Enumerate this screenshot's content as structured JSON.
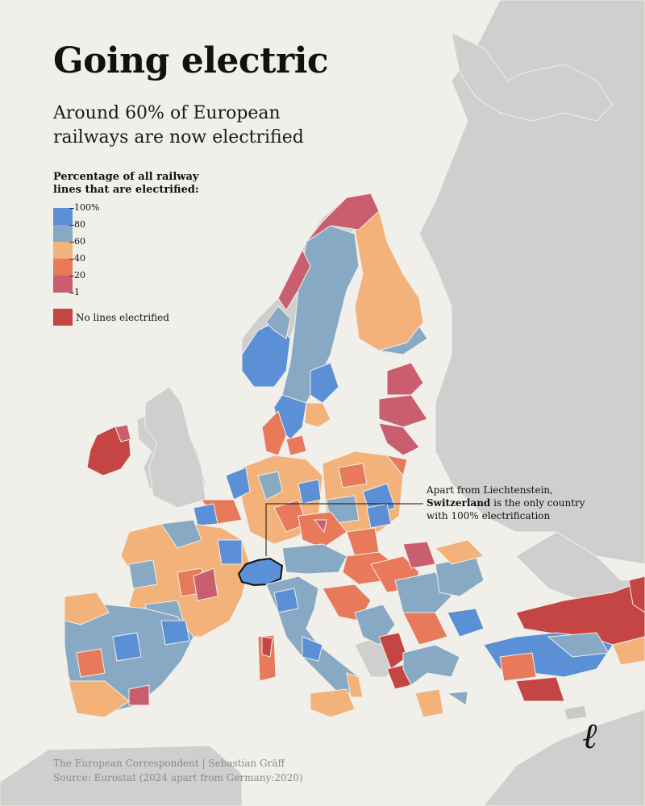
{
  "title": "Going electric",
  "subtitle": "Around 60% of European railways are now electrified",
  "legend": {
    "title": "Percentage of all railway lines that are electrified:",
    "ticks": [
      "100%",
      "80",
      "60",
      "40",
      "20",
      "1"
    ],
    "no_lines_label": "No lines electrified",
    "colors": {
      "80-100": "#5b8fd6",
      "60-80": "#87a9c4",
      "40-60": "#f2b27a",
      "20-40": "#e8795a",
      "1-20": "#c95f6e",
      "none": "#c54544",
      "no_data": "#c9c9c9"
    }
  },
  "annotation": {
    "prefix": "Apart from Liechtenstein,",
    "highlight": "Switzerland",
    "suffix": " is the only country with 100% electrification"
  },
  "footer": {
    "credit": "The European Correspondent | Sebastian Gräff",
    "source": "Source: Eurostat (2024 apart from Germany:2020)"
  },
  "logo": "ℓ"
}
